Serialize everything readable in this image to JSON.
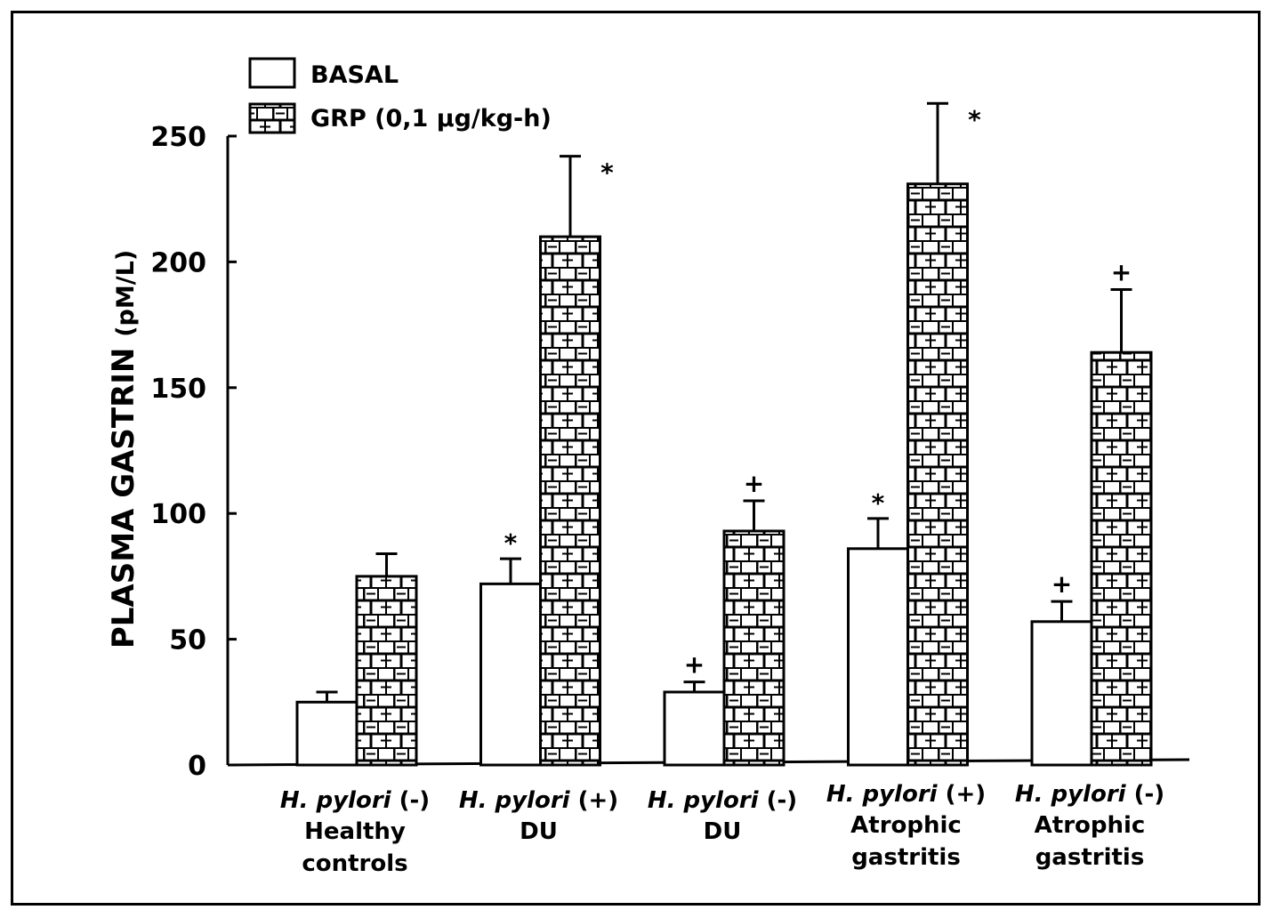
{
  "chart_data": {
    "type": "bar",
    "ylabel": "PLASMA GASTRIN",
    "ylabel_unit": "(pM/L)",
    "ylim": [
      0,
      250
    ],
    "yticks": [
      0,
      50,
      100,
      150,
      200,
      250
    ],
    "legend_position": "top-left",
    "categories": [
      {
        "line1_italic": "H. pylori",
        "line1_sign": "(-)",
        "line2": "Healthy",
        "line3": "controls"
      },
      {
        "line1_italic": "H. pylori",
        "line1_sign": "(+)",
        "line2": "DU",
        "line3": ""
      },
      {
        "line1_italic": "H. pylori",
        "line1_sign": "(-)",
        "line2": "DU",
        "line3": ""
      },
      {
        "line1_italic": "H. pylori",
        "line1_sign": "(+)",
        "line2": "Atrophic",
        "line3": "gastritis"
      },
      {
        "line1_italic": "H. pylori",
        "line1_sign": "(-)",
        "line2": "Atrophic",
        "line3": "gastritis"
      }
    ],
    "series": [
      {
        "name": "BASAL",
        "pattern": "open",
        "values": [
          25,
          72,
          29,
          86,
          57
        ],
        "errors": [
          4,
          10,
          4,
          12,
          8
        ],
        "markers": [
          "",
          "*",
          "+",
          "*",
          "+"
        ]
      },
      {
        "name": "GRP (0,1 µg/kg-h)",
        "pattern": "basketweave",
        "values": [
          75,
          210,
          93,
          231,
          164
        ],
        "errors": [
          9,
          32,
          12,
          32,
          25
        ],
        "markers": [
          "",
          "*",
          "+",
          "*",
          "+"
        ]
      }
    ]
  }
}
